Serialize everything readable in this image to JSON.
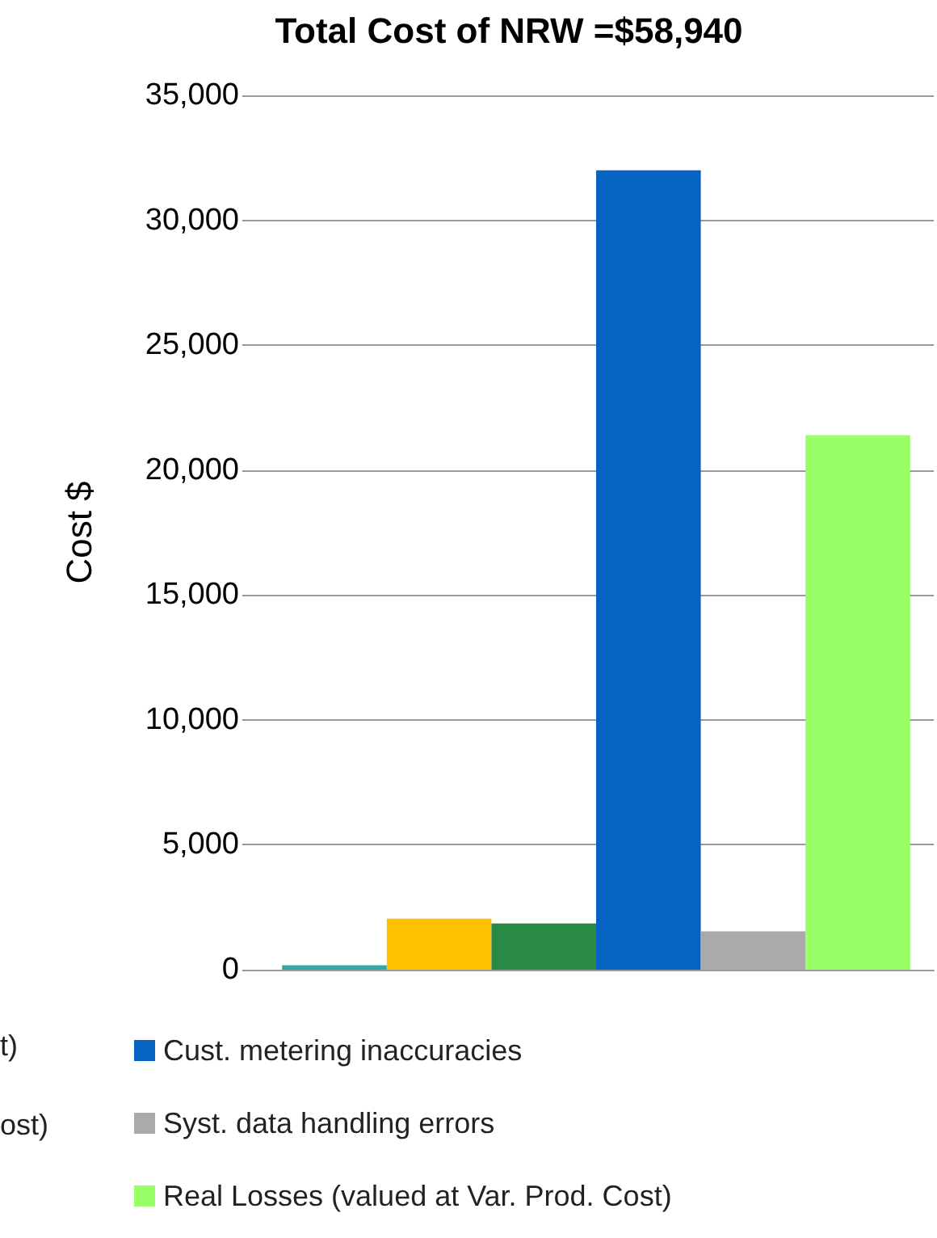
{
  "chart_data": {
    "type": "bar",
    "title": "Total Cost of NRW =$58,940",
    "ylabel": "Cost $",
    "categories": [
      null
    ],
    "series": [
      {
        "color": "#2fa8a8",
        "values": [
          180
        ]
      },
      {
        "color": "#ffc000",
        "values": [
          2050
        ]
      },
      {
        "color": "#2a8a45",
        "values": [
          1850
        ]
      },
      {
        "name": "Cust. metering inaccuracies",
        "color": "#0563c1",
        "values": [
          32000
        ]
      },
      {
        "name": "Syst. data handling errors",
        "color": "#aaaaaa",
        "values": [
          1540
        ]
      },
      {
        "name": "Real Losses (valued at Var. Prod. Cost)",
        "color": "#99ff66",
        "values": [
          21400
        ]
      }
    ],
    "annotations": [
      "t)",
      "ost)"
    ],
    "ylim": [
      0,
      35000
    ],
    "yticks": [
      0,
      {
        "value": 5000,
        "label": "5,000"
      },
      {
        "value": 10000,
        "label": "10,000"
      },
      {
        "value": 15000,
        "label": "15,000"
      },
      {
        "value": 20000,
        "label": "20,000"
      },
      {
        "value": 25000,
        "label": "25,000"
      },
      {
        "value": 30000,
        "label": "30,000"
      },
      {
        "value": 35000,
        "label": "35,000"
      }
    ],
    "grid": "y",
    "legend": "bottom"
  }
}
